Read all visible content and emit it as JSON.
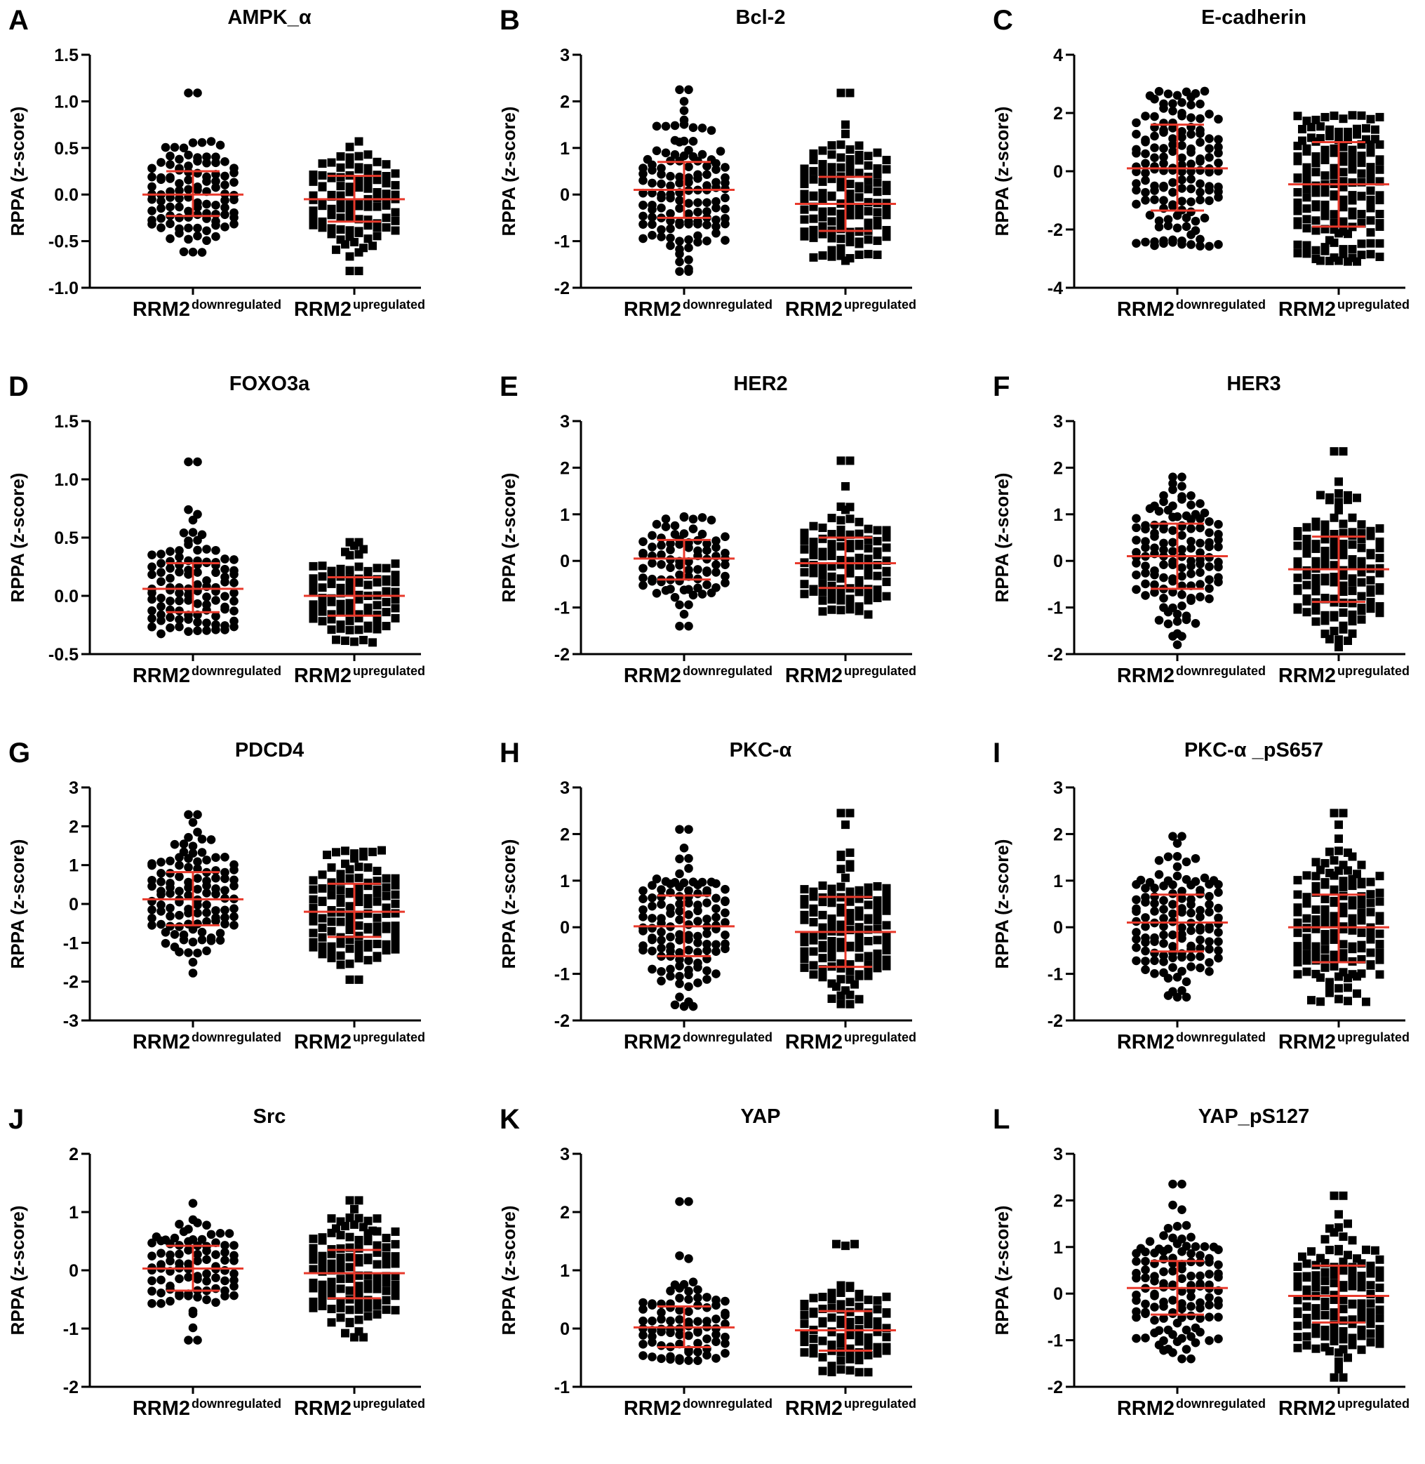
{
  "chart_data": [
    {
      "type": "scatter",
      "panel_label": "A",
      "title": "AMPK_α",
      "ylabel": "RPPA (z-score)",
      "yticks": [
        "1.5",
        "1.0",
        "0.5",
        "0.0",
        "-0.5",
        "-1.0"
      ],
      "ylim": [
        -1.0,
        1.5
      ],
      "categories": [
        {
          "main": "RRM2",
          "sup": "downregulated"
        },
        {
          "main": "RRM2",
          "sup": "upregulated"
        }
      ],
      "series": [
        {
          "name": "RRM2 downregulated",
          "marker": "circle",
          "mean": 0.0,
          "sd_low": -0.23,
          "sd_high": 0.25,
          "min": -0.62,
          "max": 1.09,
          "outliers": [
            1.09,
            0.57,
            0.53
          ]
        },
        {
          "name": "RRM2 upregulated",
          "marker": "square",
          "mean": -0.05,
          "sd_low": -0.29,
          "sd_high": 0.2,
          "min": -0.82,
          "max": 0.57,
          "outliers": [
            -0.82
          ]
        }
      ]
    },
    {
      "type": "scatter",
      "panel_label": "B",
      "title": "Bcl-2",
      "ylabel": "RPPA (z-score)",
      "yticks": [
        "3",
        "2",
        "1",
        "0",
        "-1",
        "-2"
      ],
      "ylim": [
        -2,
        3
      ],
      "categories": [
        {
          "main": "RRM2",
          "sup": "downregulated"
        },
        {
          "main": "RRM2",
          "sup": "upregulated"
        }
      ],
      "series": [
        {
          "name": "RRM2 downregulated",
          "marker": "circle",
          "mean": 0.1,
          "sd_low": -0.5,
          "sd_high": 0.7,
          "min": -1.65,
          "max": 2.25,
          "outliers": [
            2.25,
            2.0,
            1.8,
            1.6,
            -1.4,
            -1.65
          ]
        },
        {
          "name": "RRM2 upregulated",
          "marker": "square",
          "mean": -0.2,
          "sd_low": -0.78,
          "sd_high": 0.38,
          "min": -1.42,
          "max": 2.18,
          "outliers": [
            2.18,
            1.5,
            1.3,
            1.05
          ]
        }
      ]
    },
    {
      "type": "scatter",
      "panel_label": "C",
      "title": "E-cadherin",
      "ylabel": "RPPA (z-score)",
      "yticks": [
        "4",
        "2",
        "0",
        "-2",
        "-4"
      ],
      "ylim": [
        -4,
        4
      ],
      "categories": [
        {
          "main": "RRM2",
          "sup": "downregulated"
        },
        {
          "main": "RRM2",
          "sup": "upregulated"
        }
      ],
      "series": [
        {
          "name": "RRM2 downregulated",
          "marker": "circle",
          "mean": 0.1,
          "sd_low": -1.35,
          "sd_high": 1.6,
          "min": -2.6,
          "max": 2.75,
          "outliers": []
        },
        {
          "name": "RRM2 upregulated",
          "marker": "square",
          "mean": -0.45,
          "sd_low": -1.9,
          "sd_high": 1.0,
          "min": -3.1,
          "max": 1.95,
          "outliers": [
            -3.1
          ]
        }
      ]
    },
    {
      "type": "scatter",
      "panel_label": "D",
      "title": "FOXO3a",
      "ylabel": "RPPA (z-score)",
      "yticks": [
        "1.5",
        "1.0",
        "0.5",
        "0.0",
        "-0.5"
      ],
      "ylim": [
        -0.5,
        1.5
      ],
      "categories": [
        {
          "main": "RRM2",
          "sup": "downregulated"
        },
        {
          "main": "RRM2",
          "sup": "upregulated"
        }
      ],
      "series": [
        {
          "name": "RRM2 downregulated",
          "marker": "circle",
          "mean": 0.06,
          "sd_low": -0.14,
          "sd_high": 0.28,
          "min": -0.33,
          "max": 1.15,
          "outliers": [
            1.15,
            0.74,
            0.7,
            0.65
          ]
        },
        {
          "name": "RRM2 upregulated",
          "marker": "square",
          "mean": 0.0,
          "sd_low": -0.17,
          "sd_high": 0.16,
          "min": -0.4,
          "max": 0.46,
          "outliers": [
            0.46,
            0.43,
            0.4
          ]
        }
      ]
    },
    {
      "type": "scatter",
      "panel_label": "E",
      "title": "HER2",
      "ylabel": "RPPA (z-score)",
      "yticks": [
        "3",
        "2",
        "1",
        "0",
        "-1",
        "-2"
      ],
      "ylim": [
        -2,
        3
      ],
      "categories": [
        {
          "main": "RRM2",
          "sup": "downregulated"
        },
        {
          "main": "RRM2",
          "sup": "upregulated"
        }
      ],
      "series": [
        {
          "name": "RRM2 downregulated",
          "marker": "circle",
          "mean": 0.05,
          "sd_low": -0.4,
          "sd_high": 0.45,
          "min": -1.4,
          "max": 0.95,
          "outliers": [
            -1.4
          ]
        },
        {
          "name": "RRM2 upregulated",
          "marker": "square",
          "mean": -0.05,
          "sd_low": -0.58,
          "sd_high": 0.5,
          "min": -1.15,
          "max": 2.15,
          "outliers": [
            2.15,
            1.6
          ]
        }
      ]
    },
    {
      "type": "scatter",
      "panel_label": "F",
      "title": "HER3",
      "ylabel": "RPPA (z-score)",
      "yticks": [
        "3",
        "2",
        "1",
        "0",
        "-1",
        "-2"
      ],
      "ylim": [
        -2,
        3
      ],
      "categories": [
        {
          "main": "RRM2",
          "sup": "downregulated"
        },
        {
          "main": "RRM2",
          "sup": "upregulated"
        }
      ],
      "series": [
        {
          "name": "RRM2 downregulated",
          "marker": "circle",
          "mean": 0.1,
          "sd_low": -0.6,
          "sd_high": 0.8,
          "min": -1.8,
          "max": 1.8,
          "outliers": [
            1.8,
            1.6
          ]
        },
        {
          "name": "RRM2 upregulated",
          "marker": "square",
          "mean": -0.18,
          "sd_low": -0.88,
          "sd_high": 0.52,
          "min": -1.85,
          "max": 2.35,
          "outliers": [
            2.35,
            1.7
          ]
        }
      ]
    },
    {
      "type": "scatter",
      "panel_label": "G",
      "title": "PDCD4",
      "ylabel": "RPPA (z-score)",
      "yticks": [
        "3",
        "2",
        "1",
        "0",
        "-1",
        "-2",
        "-3"
      ],
      "ylim": [
        -3,
        3
      ],
      "categories": [
        {
          "main": "RRM2",
          "sup": "downregulated"
        },
        {
          "main": "RRM2",
          "sup": "upregulated"
        }
      ],
      "series": [
        {
          "name": "RRM2 downregulated",
          "marker": "circle",
          "mean": 0.12,
          "sd_low": -0.55,
          "sd_high": 0.82,
          "min": -1.78,
          "max": 2.3,
          "outliers": [
            2.3,
            2.1,
            1.85
          ]
        },
        {
          "name": "RRM2 upregulated",
          "marker": "square",
          "mean": -0.2,
          "sd_low": -0.85,
          "sd_high": 0.52,
          "min": -1.95,
          "max": 1.38,
          "outliers": [
            -1.95
          ]
        }
      ]
    },
    {
      "type": "scatter",
      "panel_label": "H",
      "title": "PKC-α",
      "ylabel": "RPPA (z-score)",
      "yticks": [
        "3",
        "2",
        "1",
        "0",
        "-1",
        "-2"
      ],
      "ylim": [
        -2,
        3
      ],
      "categories": [
        {
          "main": "RRM2",
          "sup": "downregulated"
        },
        {
          "main": "RRM2",
          "sup": "upregulated"
        }
      ],
      "series": [
        {
          "name": "RRM2 downregulated",
          "marker": "circle",
          "mean": 0.02,
          "sd_low": -0.62,
          "sd_high": 0.68,
          "min": -1.7,
          "max": 2.1,
          "outliers": [
            2.1,
            1.7,
            -1.7
          ]
        },
        {
          "name": "RRM2 upregulated",
          "marker": "square",
          "mean": -0.1,
          "sd_low": -0.85,
          "sd_high": 0.65,
          "min": -1.65,
          "max": 2.45,
          "outliers": [
            2.45,
            2.2,
            1.6
          ]
        }
      ]
    },
    {
      "type": "scatter",
      "panel_label": "I",
      "title": "PKC-α _pS657",
      "ylabel": "RPPA (z-score)",
      "yticks": [
        "3",
        "2",
        "1",
        "0",
        "-1",
        "-2"
      ],
      "ylim": [
        -2,
        3
      ],
      "categories": [
        {
          "main": "RRM2",
          "sup": "downregulated"
        },
        {
          "main": "RRM2",
          "sup": "upregulated"
        }
      ],
      "series": [
        {
          "name": "RRM2 downregulated",
          "marker": "circle",
          "mean": 0.1,
          "sd_low": -0.52,
          "sd_high": 0.7,
          "min": -1.5,
          "max": 1.95,
          "outliers": [
            1.95,
            1.8,
            -1.5
          ]
        },
        {
          "name": "RRM2 upregulated",
          "marker": "square",
          "mean": 0.0,
          "sd_low": -0.75,
          "sd_high": 0.7,
          "min": -1.6,
          "max": 2.45,
          "outliers": [
            2.45,
            2.2,
            1.9,
            1.6
          ]
        }
      ]
    },
    {
      "type": "scatter",
      "panel_label": "J",
      "title": "Src",
      "ylabel": "RPPA (z-score)",
      "yticks": [
        "2",
        "1",
        "0",
        "-1",
        "-2"
      ],
      "ylim": [
        -2,
        2
      ],
      "categories": [
        {
          "main": "RRM2",
          "sup": "downregulated"
        },
        {
          "main": "RRM2",
          "sup": "upregulated"
        }
      ],
      "series": [
        {
          "name": "RRM2 downregulated",
          "marker": "circle",
          "mean": 0.03,
          "sd_low": -0.35,
          "sd_high": 0.42,
          "min": -1.2,
          "max": 1.15,
          "outliers": [
            -1.2
          ]
        },
        {
          "name": "RRM2 upregulated",
          "marker": "square",
          "mean": -0.05,
          "sd_low": -0.48,
          "sd_high": 0.35,
          "min": -1.15,
          "max": 1.2,
          "outliers": [
            1.2,
            1.05,
            -1.05,
            -1.15
          ]
        }
      ]
    },
    {
      "type": "scatter",
      "panel_label": "K",
      "title": "YAP",
      "ylabel": "RPPA (z-score)",
      "yticks": [
        "3",
        "2",
        "1",
        "0",
        "-1"
      ],
      "ylim": [
        -1,
        3
      ],
      "categories": [
        {
          "main": "RRM2",
          "sup": "downregulated"
        },
        {
          "main": "RRM2",
          "sup": "upregulated"
        }
      ],
      "series": [
        {
          "name": "RRM2 downregulated",
          "marker": "circle",
          "mean": 0.02,
          "sd_low": -0.32,
          "sd_high": 0.38,
          "min": -0.55,
          "max": 2.18,
          "outliers": [
            2.18,
            1.25,
            1.2
          ]
        },
        {
          "name": "RRM2 upregulated",
          "marker": "square",
          "mean": -0.03,
          "sd_low": -0.38,
          "sd_high": 0.3,
          "min": -0.75,
          "max": 1.45,
          "outliers": [
            1.45,
            1.42,
            -0.75
          ]
        }
      ]
    },
    {
      "type": "scatter",
      "panel_label": "L",
      "title": "YAP_pS127",
      "ylabel": "RPPA (z-score)",
      "yticks": [
        "3",
        "2",
        "1",
        "0",
        "-1",
        "-2"
      ],
      "ylim": [
        -2,
        3
      ],
      "categories": [
        {
          "main": "RRM2",
          "sup": "downregulated"
        },
        {
          "main": "RRM2",
          "sup": "upregulated"
        }
      ],
      "series": [
        {
          "name": "RRM2 downregulated",
          "marker": "circle",
          "mean": 0.12,
          "sd_low": -0.45,
          "sd_high": 0.7,
          "min": -1.4,
          "max": 2.35,
          "outliers": [
            2.35,
            1.9,
            1.8,
            -1.4
          ]
        },
        {
          "name": "RRM2 upregulated",
          "marker": "square",
          "mean": -0.05,
          "sd_low": -0.62,
          "sd_high": 0.6,
          "min": -1.8,
          "max": 2.1,
          "outliers": [
            2.1,
            1.7,
            1.5,
            -1.8
          ]
        }
      ]
    }
  ],
  "colors": {
    "points": "#000000",
    "error_bars": "#e8392b",
    "axes": "#000000",
    "background": "#ffffff"
  }
}
